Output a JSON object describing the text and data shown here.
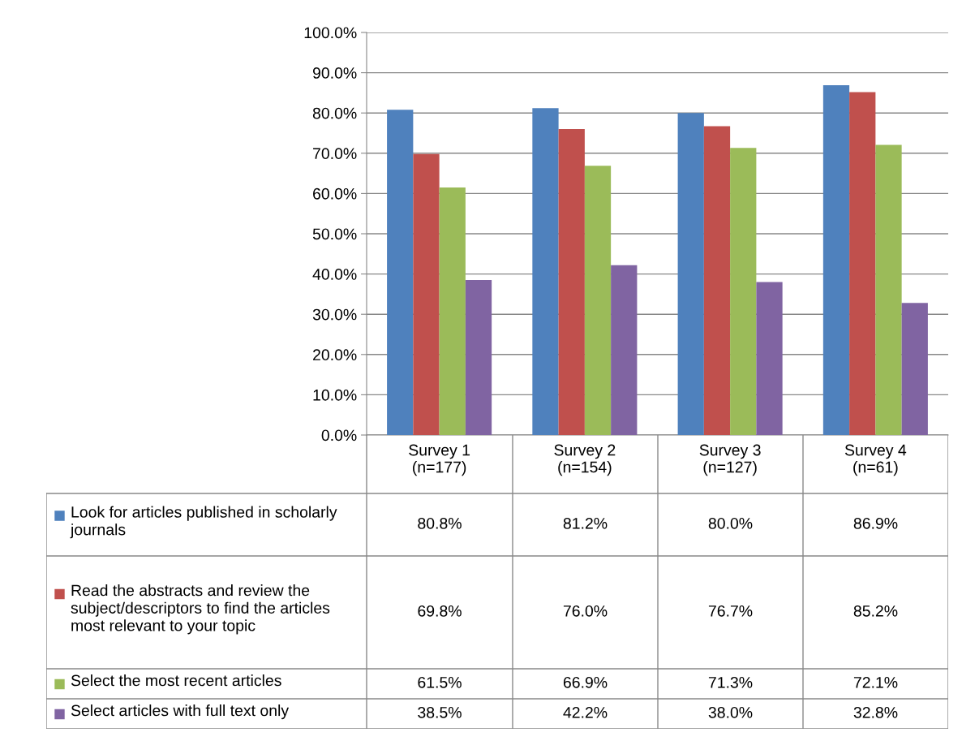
{
  "chart_data": {
    "type": "bar",
    "categories": [
      "Survey 1\n(n=177)",
      "Survey 2\n(n=154)",
      "Survey 3\n(n=127)",
      "Survey 4\n(n=61)"
    ],
    "series": [
      {
        "name": "Look for articles published in scholarly journals",
        "color": "#4f81bd",
        "values": [
          80.8,
          81.2,
          80.0,
          86.9
        ],
        "value_labels": [
          "80.8%",
          "81.2%",
          "80.0%",
          "86.9%"
        ]
      },
      {
        "name": "Read the abstracts and review the subject/descriptors to find the articles most relevant to your topic",
        "color": "#c0504d",
        "values": [
          69.8,
          76.0,
          76.7,
          85.2
        ],
        "value_labels": [
          "69.8%",
          "76.0%",
          "76.7%",
          "85.2%"
        ]
      },
      {
        "name": "Select the most recent articles",
        "color": "#9bbb59",
        "values": [
          61.5,
          66.9,
          71.3,
          72.1
        ],
        "value_labels": [
          "61.5%",
          "66.9%",
          "71.3%",
          "72.1%"
        ]
      },
      {
        "name": "Select articles with full text only",
        "color": "#8064a2",
        "values": [
          38.5,
          42.2,
          38.0,
          32.8
        ],
        "value_labels": [
          "38.5%",
          "42.2%",
          "38.0%",
          "32.8%"
        ]
      }
    ],
    "ylim": [
      0,
      100
    ],
    "yticks": [
      {
        "value": 0,
        "label": "0.0%"
      },
      {
        "value": 10,
        "label": "10.0%"
      },
      {
        "value": 20,
        "label": "20.0%"
      },
      {
        "value": 30,
        "label": "30.0%"
      },
      {
        "value": 40,
        "label": "40.0%"
      },
      {
        "value": 50,
        "label": "50.0%"
      },
      {
        "value": 60,
        "label": "60.0%"
      },
      {
        "value": 70,
        "label": "70.0%"
      },
      {
        "value": 80,
        "label": "80.0%"
      },
      {
        "value": 90,
        "label": "90.0%"
      },
      {
        "value": 100,
        "label": "100.0%"
      }
    ],
    "grid": "y",
    "legend": "bottom"
  }
}
